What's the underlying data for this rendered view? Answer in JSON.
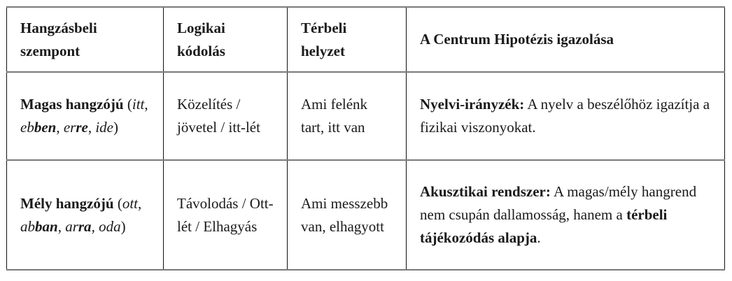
{
  "table": {
    "headers": [
      "Hangzásbeli szempont",
      "Logikai kódolás",
      "Térbeli helyzet",
      "A Centrum Hipotézis igazolása"
    ],
    "rows": [
      {
        "c1": {
          "bold": "Magas hangzójú",
          "open": " (",
          "w1": "itt",
          "sep1": ", ",
          "w2a": "eb",
          "w2b": "ben",
          "sep2": ", ",
          "w3a": "er",
          "w3b": "re",
          "sep3": ", ",
          "w4": "ide",
          "close": ")"
        },
        "c2": "Közelítés / jövetel / itt-lét",
        "c3": "Ami felénk tart, itt van",
        "c4": {
          "bold": "Nyelvi-irányzék:",
          "text": " A nyelv a beszélőhöz igazítja a fizikai viszonyokat."
        }
      },
      {
        "c1": {
          "bold": "Mély hangzójú",
          "open": " (",
          "w1": "ott",
          "sep1": ", ",
          "w2a": "ab",
          "w2b": "ban",
          "sep2": ", ",
          "w3a": "ar",
          "w3b": "ra",
          "sep3": ", ",
          "w4": "oda",
          "close": ")"
        },
        "c2": "Távolodás / Ott-lét / Elhagyás",
        "c3": "Ami messzebb van, elhagyott",
        "c4": {
          "bold": "Akusztikai rendszer:",
          "text": " A magas/mély hangrend nem csupán dallamosság, hanem a ",
          "bold2": "térbeli tájékozódás alapja",
          "end": "."
        }
      }
    ]
  }
}
